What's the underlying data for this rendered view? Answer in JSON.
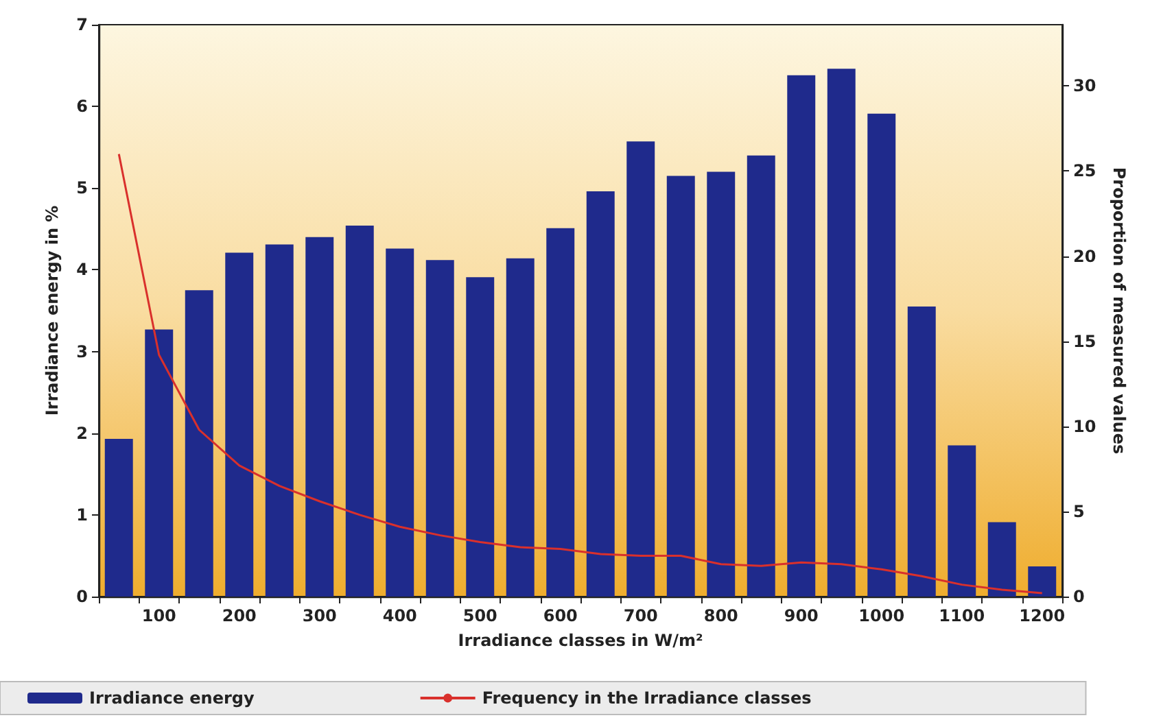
{
  "chart_data": {
    "type": "bar",
    "xlabel": "Irradiance classes in W/m²",
    "ylabel": "Irradiance energy in %",
    "y2label": "Proportion of measured values",
    "categories": [
      null,
      "100",
      null,
      "200",
      null,
      "300",
      null,
      "400",
      null,
      "500",
      null,
      "600",
      null,
      "700",
      null,
      "800",
      null,
      "900",
      null,
      "1000",
      null,
      "1100",
      null,
      "1200"
    ],
    "series": [
      {
        "name": "Irradiance energy",
        "color": "#1f2a8c",
        "values": [
          1.93,
          3.27,
          3.75,
          4.21,
          4.31,
          4.4,
          4.54,
          4.26,
          4.12,
          3.91,
          4.14,
          4.51,
          4.96,
          5.57,
          5.15,
          5.2,
          5.4,
          6.38,
          6.46,
          5.91,
          3.55,
          1.85,
          0.91,
          0.37
        ]
      },
      {
        "name": "Frequency in the Irradiance classes",
        "type": "line",
        "axis": "y2",
        "color": "#d9302c",
        "values": [
          26.0,
          14.2,
          9.8,
          7.7,
          6.5,
          5.6,
          4.8,
          4.1,
          3.6,
          3.2,
          2.9,
          2.8,
          2.5,
          2.4,
          2.4,
          1.9,
          1.8,
          2.0,
          1.9,
          1.6,
          1.2,
          0.7,
          0.4,
          0.2
        ]
      }
    ],
    "ylim": [
      0,
      7
    ],
    "yticks": [
      0,
      1,
      2,
      3,
      4,
      5,
      6,
      7
    ],
    "y2lim": [
      0,
      33.6
    ],
    "y2ticks": [
      0,
      5,
      10,
      15,
      20,
      25,
      30
    ],
    "grid": false,
    "legend": "bottom",
    "marker": "none",
    "line_style": "solid"
  }
}
